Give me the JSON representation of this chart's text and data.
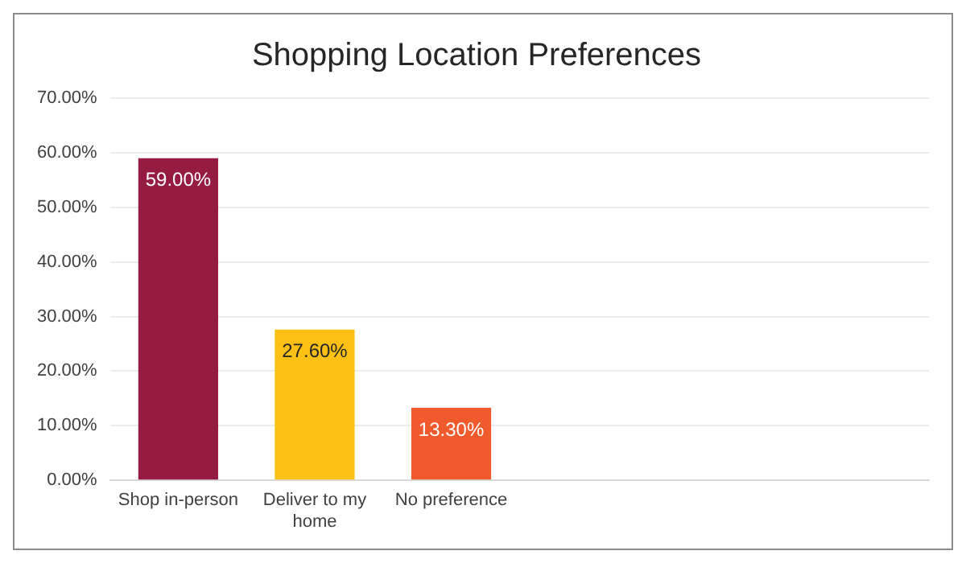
{
  "chart_data": {
    "type": "bar",
    "title": "Shopping Location Preferences",
    "categories": [
      "Shop in-person",
      "Deliver to my home",
      "No preference",
      null,
      null,
      null
    ],
    "values": [
      59,
      27.6,
      13.3,
      null,
      null,
      null
    ],
    "colors": [
      "#951b42",
      "#fdc116",
      "#f15a2c",
      "#000000",
      "#000000",
      "#000000"
    ],
    "value_labels": [
      "59.00%",
      "27.60%",
      "13.30%",
      null,
      null,
      null
    ],
    "ylim": [
      0,
      70
    ],
    "yticks": [
      {
        "value": 0,
        "label": "0.00%"
      },
      {
        "value": 10,
        "label": "10.00%"
      },
      {
        "value": 20,
        "label": "20.00%"
      },
      {
        "value": 30,
        "label": "30.00%"
      },
      {
        "value": 40,
        "label": "40.00%"
      },
      {
        "value": 50,
        "label": "50.00%"
      },
      {
        "value": 60,
        "label": "60.00%"
      },
      {
        "value": 70,
        "label": "70.00%"
      }
    ],
    "grid": "y"
  }
}
